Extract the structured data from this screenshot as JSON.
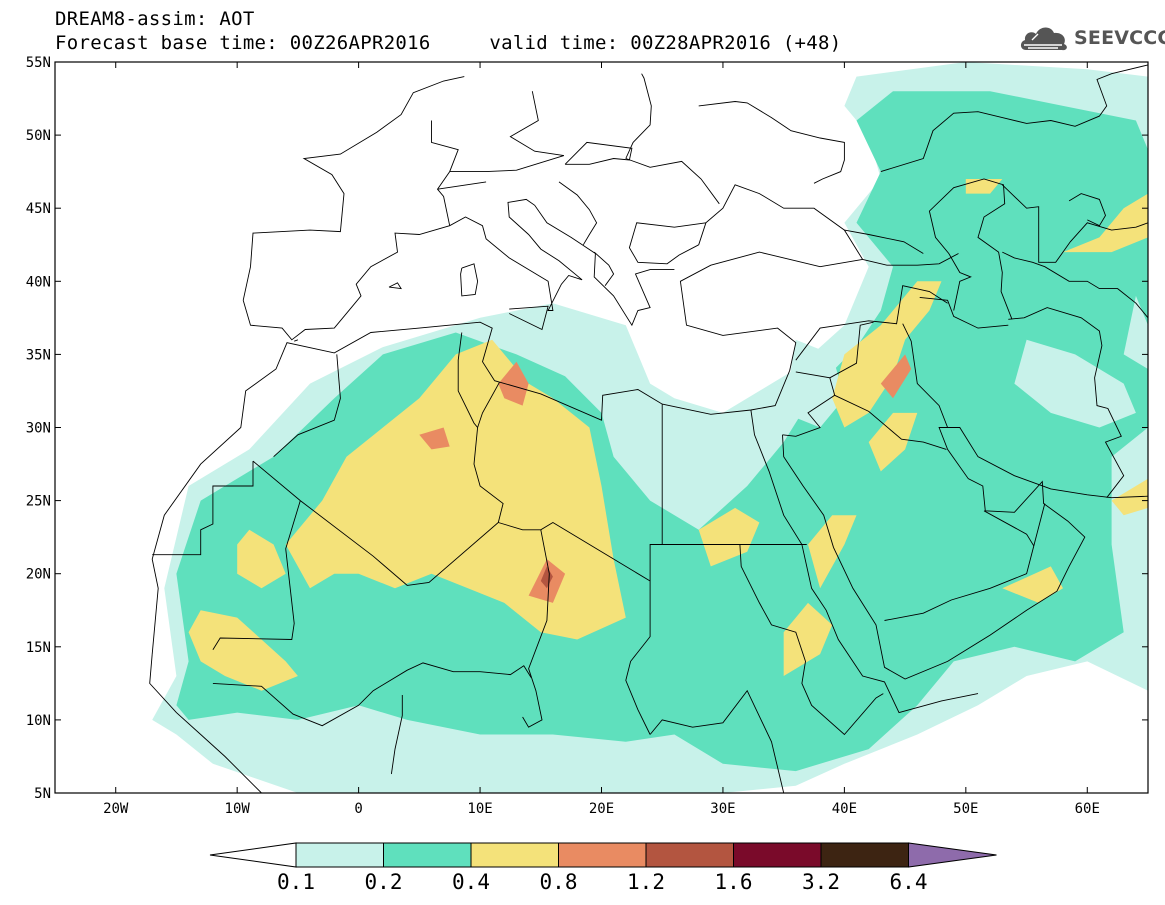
{
  "title": {
    "line1": "DREAM8-assim: AOT",
    "line2": "Forecast base time: 00Z26APR2016     valid time: 00Z28APR2016 (+48)"
  },
  "logo": {
    "text": "SEEVCCC",
    "icon": "cloud-icon"
  },
  "chart_data": {
    "type": "heatmap",
    "variable": "AOT",
    "lon_range": [
      -25,
      65
    ],
    "lat_range": [
      5,
      55
    ],
    "x_ticks": [
      {
        "lon": -20,
        "label": "20W"
      },
      {
        "lon": -10,
        "label": "10W"
      },
      {
        "lon": 0,
        "label": "0"
      },
      {
        "lon": 10,
        "label": "10E"
      },
      {
        "lon": 20,
        "label": "20E"
      },
      {
        "lon": 30,
        "label": "30E"
      },
      {
        "lon": 40,
        "label": "40E"
      },
      {
        "lon": 50,
        "label": "50E"
      },
      {
        "lon": 60,
        "label": "60E"
      }
    ],
    "y_ticks": [
      {
        "lat": 55,
        "label": "55N"
      },
      {
        "lat": 50,
        "label": "50N"
      },
      {
        "lat": 45,
        "label": "45N"
      },
      {
        "lat": 40,
        "label": "40N"
      },
      {
        "lat": 35,
        "label": "35N"
      },
      {
        "lat": 30,
        "label": "30N"
      },
      {
        "lat": 25,
        "label": "25N"
      },
      {
        "lat": 20,
        "label": "20N"
      },
      {
        "lat": 15,
        "label": "15N"
      },
      {
        "lat": 10,
        "label": "10N"
      },
      {
        "lat": 5,
        "label": "5N"
      }
    ],
    "colorbar": {
      "levels": [
        "0.1",
        "0.2",
        "0.4",
        "0.8",
        "1.2",
        "1.6",
        "3.2",
        "6.4"
      ],
      "colors": [
        "#ffffff",
        "#c8f2ea",
        "#5fe0bd",
        "#f4e27a",
        "#e98b62",
        "#b35540",
        "#7a0a2a",
        "#3d2412",
        "#8e6bab"
      ]
    },
    "regions": [
      {
        "level": 1,
        "points": [
          [
            -17,
            10
          ],
          [
            -15,
            13
          ],
          [
            -16,
            19
          ],
          [
            -14,
            26
          ],
          [
            -9,
            28.5
          ],
          [
            -4,
            33
          ],
          [
            2,
            35.5
          ],
          [
            10,
            37.5
          ],
          [
            16,
            38.5
          ],
          [
            22,
            37
          ],
          [
            24,
            33
          ],
          [
            26,
            32
          ],
          [
            30,
            31
          ],
          [
            34,
            33
          ],
          [
            36,
            34
          ],
          [
            40,
            37
          ],
          [
            42,
            41
          ],
          [
            40,
            44
          ],
          [
            43,
            47
          ],
          [
            42,
            50
          ],
          [
            40,
            52
          ],
          [
            41,
            54
          ],
          [
            50,
            55
          ],
          [
            60,
            54.5
          ],
          [
            65,
            54
          ],
          [
            65,
            12
          ],
          [
            60,
            14
          ],
          [
            55,
            13
          ],
          [
            51,
            11
          ],
          [
            46,
            9
          ],
          [
            40,
            7
          ],
          [
            36,
            5.5
          ],
          [
            30,
            5
          ],
          [
            -5,
            5
          ],
          [
            -12,
            7
          ],
          [
            -15,
            9
          ]
        ]
      },
      {
        "level": 2,
        "points": [
          [
            -15,
            11
          ],
          [
            -14,
            14
          ],
          [
            -15,
            20
          ],
          [
            -13,
            25
          ],
          [
            -7,
            28
          ],
          [
            -2,
            32
          ],
          [
            2,
            35
          ],
          [
            8,
            36.5
          ],
          [
            13,
            35
          ],
          [
            17,
            33.5
          ],
          [
            20,
            31
          ],
          [
            21,
            28
          ],
          [
            24,
            25
          ],
          [
            28,
            23
          ],
          [
            32,
            26
          ],
          [
            35,
            29
          ],
          [
            38,
            33
          ],
          [
            41,
            35.5
          ],
          [
            43,
            38
          ],
          [
            44,
            41
          ],
          [
            41,
            44
          ],
          [
            43,
            47.5
          ],
          [
            41,
            51
          ],
          [
            44,
            53
          ],
          [
            52,
            53
          ],
          [
            58,
            52
          ],
          [
            64,
            51
          ],
          [
            65,
            49
          ],
          [
            65,
            30
          ],
          [
            62,
            28
          ],
          [
            62,
            22
          ],
          [
            63,
            16
          ],
          [
            59,
            14
          ],
          [
            54,
            15
          ],
          [
            49,
            14
          ],
          [
            46,
            11
          ],
          [
            42,
            8
          ],
          [
            36,
            6.5
          ],
          [
            30,
            7
          ],
          [
            26,
            9
          ],
          [
            22,
            8.5
          ],
          [
            16,
            9
          ],
          [
            10,
            9
          ],
          [
            4,
            10
          ],
          [
            0,
            11
          ],
          [
            -5,
            10
          ],
          [
            -10,
            10.5
          ],
          [
            -14,
            10
          ]
        ]
      },
      {
        "level": 1,
        "points": [
          [
            36,
            36
          ],
          [
            39,
            35
          ],
          [
            40,
            32
          ],
          [
            38,
            30
          ],
          [
            35,
            31
          ]
        ]
      },
      {
        "level": 1,
        "points": [
          [
            55,
            36
          ],
          [
            59,
            35
          ],
          [
            63,
            33
          ],
          [
            64,
            31
          ],
          [
            61,
            30
          ],
          [
            57,
            31
          ],
          [
            54,
            33
          ]
        ]
      },
      {
        "level": 1,
        "points": [
          [
            64,
            39
          ],
          [
            65,
            37
          ],
          [
            65,
            34
          ],
          [
            63,
            35
          ]
        ]
      },
      {
        "level": 3,
        "points": [
          [
            -14,
            16
          ],
          [
            -13,
            17.5
          ],
          [
            -10,
            17
          ],
          [
            -8,
            15.5
          ],
          [
            -6,
            14
          ],
          [
            -5,
            13
          ],
          [
            -8,
            12
          ],
          [
            -11,
            13
          ],
          [
            -13,
            14
          ]
        ]
      },
      {
        "level": 3,
        "points": [
          [
            -6,
            22
          ],
          [
            -3,
            25
          ],
          [
            -1,
            28
          ],
          [
            2,
            30
          ],
          [
            5,
            32
          ],
          [
            8,
            35
          ],
          [
            11,
            36
          ],
          [
            14,
            33
          ],
          [
            16,
            32
          ],
          [
            19,
            30
          ],
          [
            20,
            26
          ],
          [
            21,
            21
          ],
          [
            22,
            17
          ],
          [
            18,
            15.5
          ],
          [
            15,
            16
          ],
          [
            12,
            18
          ],
          [
            9,
            19
          ],
          [
            6,
            20
          ],
          [
            3,
            19
          ],
          [
            0,
            20
          ],
          [
            -2,
            20
          ],
          [
            -4,
            19
          ]
        ]
      },
      {
        "level": 3,
        "points": [
          [
            -10,
            22
          ],
          [
            -9,
            23
          ],
          [
            -7,
            22
          ],
          [
            -6,
            20
          ],
          [
            -8,
            19
          ],
          [
            -10,
            20
          ]
        ]
      },
      {
        "level": 3,
        "points": [
          [
            29,
            20.5
          ],
          [
            32,
            21.5
          ],
          [
            33,
            23.5
          ],
          [
            31,
            24.5
          ],
          [
            28,
            23
          ]
        ]
      },
      {
        "level": 3,
        "points": [
          [
            35,
            13
          ],
          [
            38,
            14.5
          ],
          [
            39,
            16.5
          ],
          [
            37,
            18
          ],
          [
            35,
            16
          ]
        ]
      },
      {
        "level": 3,
        "points": [
          [
            40,
            30
          ],
          [
            42,
            31
          ],
          [
            44,
            33.5
          ],
          [
            45,
            36
          ],
          [
            47,
            38
          ],
          [
            48,
            40
          ],
          [
            46,
            40
          ],
          [
            43,
            37
          ],
          [
            40,
            35
          ],
          [
            39,
            32
          ]
        ]
      },
      {
        "level": 3,
        "points": [
          [
            43,
            27
          ],
          [
            45,
            28.5
          ],
          [
            46,
            31
          ],
          [
            44,
            31
          ],
          [
            42,
            29
          ]
        ]
      },
      {
        "level": 3,
        "points": [
          [
            38,
            19
          ],
          [
            40,
            22
          ],
          [
            41,
            24
          ],
          [
            39,
            24
          ],
          [
            37,
            22
          ]
        ]
      },
      {
        "level": 3,
        "points": [
          [
            53,
            19
          ],
          [
            57,
            20.5
          ],
          [
            58,
            19
          ],
          [
            56,
            18
          ]
        ]
      },
      {
        "level": 3,
        "points": [
          [
            58,
            42
          ],
          [
            61,
            43
          ],
          [
            63,
            45
          ],
          [
            65,
            46
          ],
          [
            65,
            43
          ],
          [
            62,
            42
          ]
        ]
      },
      {
        "level": 3,
        "points": [
          [
            62,
            25
          ],
          [
            65,
            26.5
          ],
          [
            65,
            24.5
          ],
          [
            63,
            24
          ]
        ]
      },
      {
        "level": 3,
        "points": [
          [
            50,
            47
          ],
          [
            53,
            47
          ],
          [
            52,
            46
          ],
          [
            50,
            46
          ]
        ]
      },
      {
        "level": 4,
        "points": [
          [
            11.5,
            33
          ],
          [
            13,
            34.5
          ],
          [
            14,
            33
          ],
          [
            13.5,
            31.5
          ],
          [
            12,
            32
          ]
        ]
      },
      {
        "level": 4,
        "points": [
          [
            5,
            29.5
          ],
          [
            7,
            30
          ],
          [
            7.5,
            28.7
          ],
          [
            6,
            28.5
          ]
        ]
      },
      {
        "level": 4,
        "points": [
          [
            14,
            18.5
          ],
          [
            15.5,
            21
          ],
          [
            17,
            20
          ],
          [
            16,
            18
          ]
        ]
      },
      {
        "level": 4,
        "points": [
          [
            43,
            33
          ],
          [
            45,
            35
          ],
          [
            45.5,
            34
          ],
          [
            44,
            32
          ]
        ]
      },
      {
        "level": 5,
        "points": [
          [
            15,
            19.5
          ],
          [
            15.5,
            20.5
          ],
          [
            16,
            19.8
          ],
          [
            15.5,
            19
          ]
        ]
      }
    ]
  }
}
